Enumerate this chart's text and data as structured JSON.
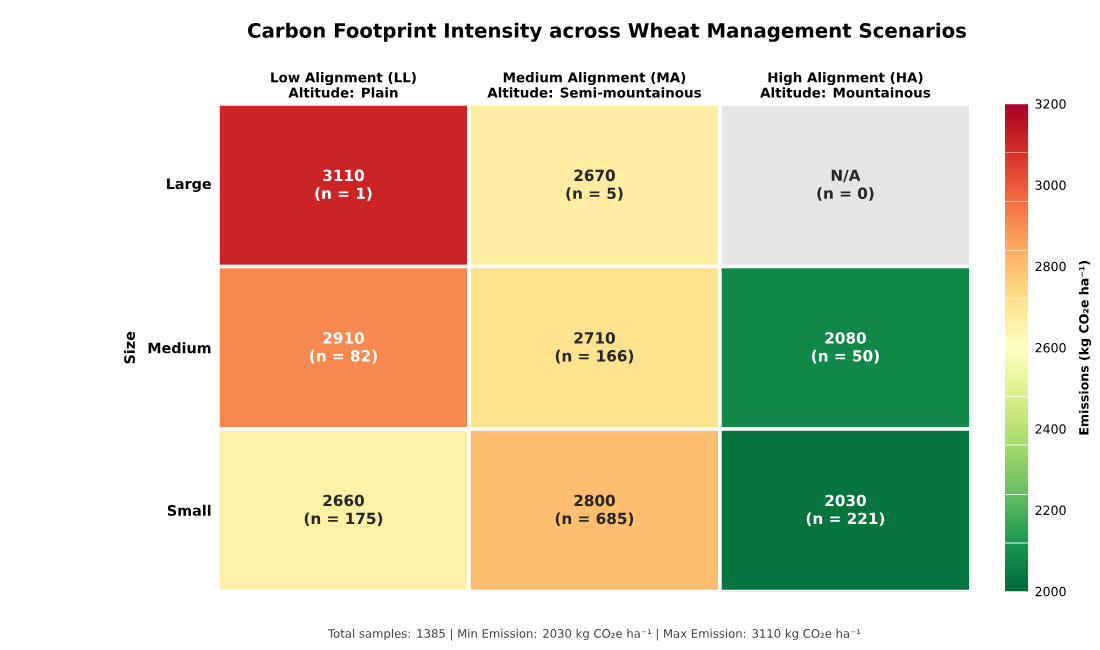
{
  "chart_data": {
    "type": "heatmap",
    "title": "Carbon Footprint Intensity across Wheat Management Scenarios",
    "ylabel": "Size",
    "clabel": "Emissions (kg CO₂e ha⁻¹)",
    "categories": [
      "Low Alignment (LL)\nAltitude: Plain",
      "Medium Alignment (MA)\nAltitude: Semi-mountainous",
      "High Alignment (HA)\nAltitude: Mountainous"
    ],
    "y_categories": [
      "Large",
      "Medium",
      "Small"
    ],
    "cells": [
      [
        3110,
        2670,
        null
      ],
      [
        2910,
        2710,
        2080
      ],
      [
        2660,
        2800,
        2030
      ]
    ],
    "cell_labels": [
      [
        "3110\n(n = 1)",
        "2670\n(n = 5)",
        "N/A\n(n = 0)"
      ],
      [
        "2910\n(n = 82)",
        "2710\n(n = 166)",
        "2080\n(n = 50)"
      ],
      [
        "2660\n(n = 175)",
        "2800\n(n = 685)",
        "2030\n(n = 221)"
      ]
    ],
    "clim": [
      2000,
      3200
    ],
    "cticks": [
      2000,
      2200,
      2400,
      2600,
      2800,
      3000,
      3200
    ],
    "annotations": [
      "Total samples: 1385     |     Min Emission: 2030 kg CO₂e ha⁻¹     |     Max Emission: 3110 kg CO₂e ha⁻¹"
    ]
  }
}
